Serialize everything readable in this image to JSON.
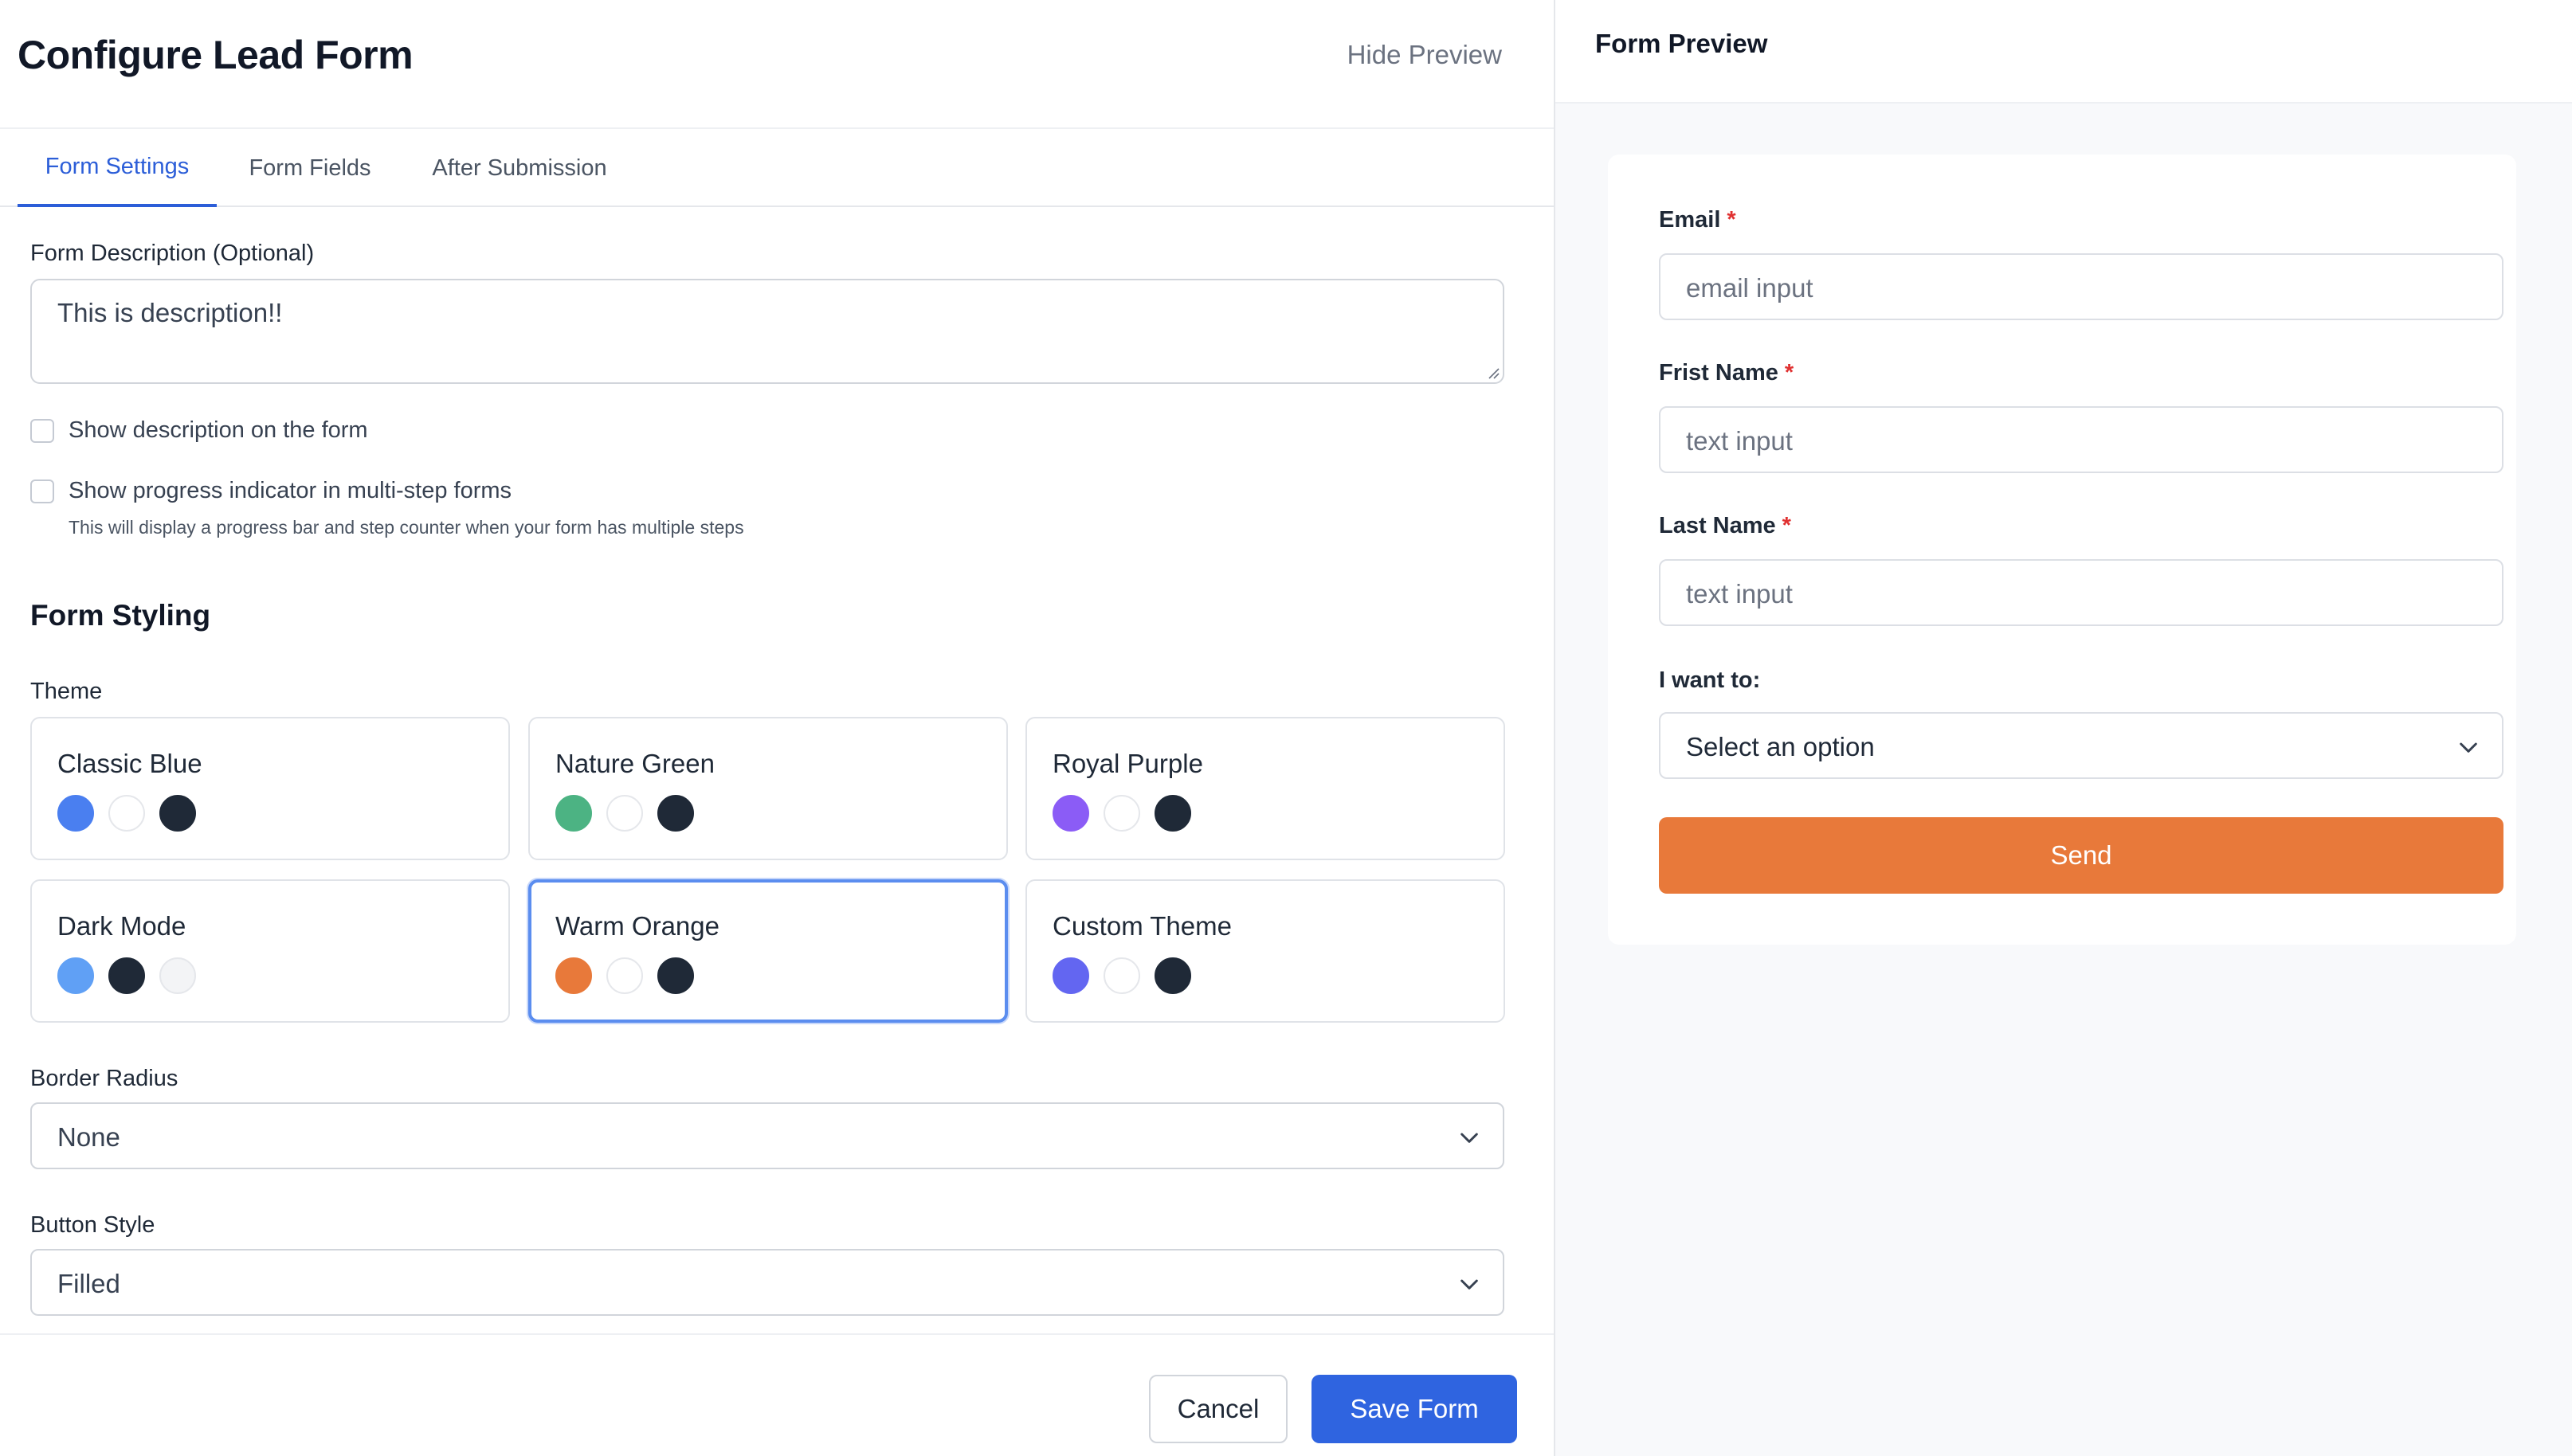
{
  "header": {
    "title": "Configure Lead Form",
    "hide_preview_label": "Hide Preview"
  },
  "tabs": [
    {
      "label": "Form Settings",
      "active": true
    },
    {
      "label": "Form Fields",
      "active": false
    },
    {
      "label": "After Submission",
      "active": false
    }
  ],
  "settings": {
    "description_label": "Form Description (Optional)",
    "description_value": "This is description!!",
    "show_description_label": "Show description on the form",
    "show_description_checked": false,
    "show_progress_label": "Show progress indicator in multi-step forms",
    "show_progress_checked": false,
    "progress_hint": "This will display a progress bar and step counter when your form has multiple steps"
  },
  "styling": {
    "section_title": "Form Styling",
    "theme_label": "Theme",
    "themes": [
      {
        "name": "Classic Blue",
        "colors": [
          "#4a7ff0",
          "#ffffff",
          "#1f2937"
        ],
        "selected": false
      },
      {
        "name": "Nature Green",
        "colors": [
          "#4cb383",
          "#ffffff",
          "#1f2937"
        ],
        "selected": false
      },
      {
        "name": "Royal Purple",
        "colors": [
          "#8b5cf6",
          "#ffffff",
          "#1f2937"
        ],
        "selected": false
      },
      {
        "name": "Dark Mode",
        "colors": [
          "#60a0f5",
          "#1f2937",
          "#f3f4f6"
        ],
        "selected": false
      },
      {
        "name": "Warm Orange",
        "colors": [
          "#e8793a",
          "#ffffff",
          "#1f2937"
        ],
        "selected": true
      },
      {
        "name": "Custom Theme",
        "colors": [
          "#6366f1",
          "#ffffff",
          "#1f2937"
        ],
        "selected": false
      }
    ],
    "border_radius_label": "Border Radius",
    "border_radius_value": "None",
    "button_style_label": "Button Style",
    "button_style_value": "Filled"
  },
  "footer": {
    "cancel_label": "Cancel",
    "save_label": "Save Form"
  },
  "preview": {
    "title": "Form Preview",
    "fields": [
      {
        "label": "Email",
        "required": "*",
        "placeholder": "email input"
      },
      {
        "label": "Frist Name",
        "required": "*",
        "placeholder": "text input"
      },
      {
        "label": "Last Name",
        "required": "*",
        "placeholder": "text input"
      }
    ],
    "select_label": "I want to:",
    "select_value": "Select an option",
    "send_label": "Send"
  },
  "colors": {
    "accent": "#2f64e0",
    "preview_button": "#e8793a",
    "required": "#e03131"
  }
}
